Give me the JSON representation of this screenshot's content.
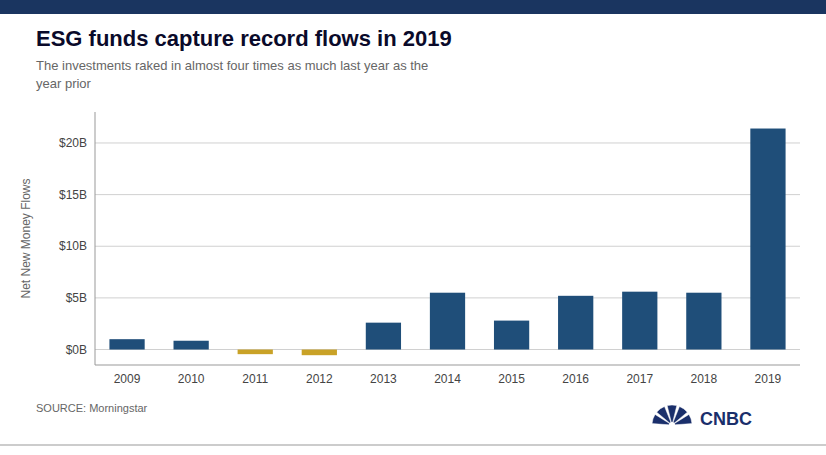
{
  "chart_data": {
    "type": "bar",
    "title": "ESG funds capture record flows in 2019",
    "subtitle": "The investments raked in almost four times as much last year as the\nyear prior",
    "source": "SOURCE: Morningstar",
    "ylabel": "Net New Money Flows",
    "categories": [
      "2009",
      "2010",
      "2011",
      "2012",
      "2013",
      "2014",
      "2015",
      "2016",
      "2017",
      "2018",
      "2019"
    ],
    "values": [
      1.0,
      0.85,
      -0.45,
      -0.55,
      2.6,
      5.5,
      2.8,
      5.2,
      5.6,
      5.5,
      21.4
    ],
    "colors": [
      "#1f4e79",
      "#1f4e79",
      "#c9a227",
      "#c9a227",
      "#1f4e79",
      "#1f4e79",
      "#1f4e79",
      "#1f4e79",
      "#1f4e79",
      "#1f4e79",
      "#1f4e79"
    ],
    "ylim": [
      -1.5,
      23
    ],
    "yticks": [
      {
        "value": 0,
        "label": "$0B"
      },
      {
        "value": 5,
        "label": "$5B"
      },
      {
        "value": 10,
        "label": "$10B"
      },
      {
        "value": 15,
        "label": "$15B"
      },
      {
        "value": 20,
        "label": "$20B"
      }
    ],
    "grid": true,
    "annotations": [
      "CNBC"
    ]
  }
}
